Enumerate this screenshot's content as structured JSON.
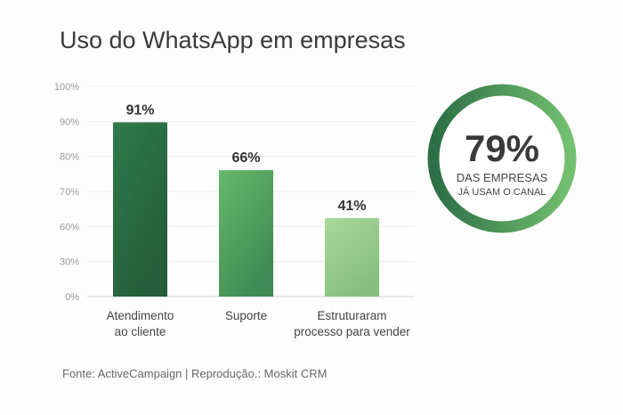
{
  "chart_data": {
    "type": "bar",
    "title": "Uso do WhatsApp em empresas",
    "categories": [
      [
        "Atendimento",
        "ao cliente"
      ],
      [
        "Suporte"
      ],
      [
        "Estruturaram",
        "processo para vender"
      ]
    ],
    "values": [
      91,
      66,
      41
    ],
    "data_labels": [
      "91%",
      "66%",
      "41%"
    ],
    "ytick_labels": [
      "100%",
      "90%",
      "80%",
      "70%",
      "60%",
      "30%",
      "0%"
    ],
    "ylim": [
      0,
      100
    ],
    "grid": true,
    "colors": [
      [
        "#2f7a4a",
        "#245e3a"
      ],
      [
        "#66b86a",
        "#3f8a55"
      ],
      [
        "#a8d89a",
        "#86be80"
      ]
    ],
    "highlight": {
      "value": 79,
      "label": "79%",
      "line1": "DAS EMPRESAS",
      "line2": "JÁ USAM O CANAL",
      "colors": [
        "#2c6e45",
        "#74c070"
      ]
    },
    "source": "Fonte: ActiveCampaign  |  Reprodução.: Moskit CRM"
  }
}
